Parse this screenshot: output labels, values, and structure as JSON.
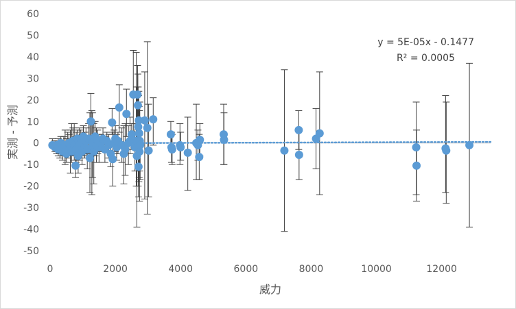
{
  "colors": {
    "marker": "#5b9bd5",
    "trendline": "#5b9bd5",
    "error_bar": "#404040",
    "axis": "#bfbfbf",
    "text": "#595959"
  },
  "chart_data": {
    "type": "scatter",
    "xlabel": "威力",
    "ylabel": "実測 - 予測",
    "xlim": [
      0,
      13500
    ],
    "ylim": [
      -50,
      60
    ],
    "xticks": [
      0,
      2000,
      4000,
      6000,
      8000,
      10000,
      12000
    ],
    "yticks": [
      -50,
      -40,
      -30,
      -20,
      -10,
      0,
      10,
      20,
      30,
      40,
      50,
      60
    ],
    "grid": false,
    "trendline": {
      "type": "linear",
      "style": "dotted",
      "slope": 5e-05,
      "intercept": -0.1477,
      "equation_text": "y = 5E-05x - 0.1477",
      "r2_text": "R² = 0.0005"
    },
    "points": [
      {
        "x": 70,
        "y": -1,
        "lo": -2,
        "hi": 2
      },
      {
        "x": 150,
        "y": -2,
        "lo": -4,
        "hi": 1
      },
      {
        "x": 200,
        "y": -1,
        "lo": -5,
        "hi": 1
      },
      {
        "x": 250,
        "y": -3,
        "lo": -6,
        "hi": 2
      },
      {
        "x": 300,
        "y": -2,
        "lo": -7,
        "hi": 1
      },
      {
        "x": 330,
        "y": 0,
        "lo": -4,
        "hi": 3
      },
      {
        "x": 380,
        "y": -4,
        "lo": -8,
        "hi": 0
      },
      {
        "x": 420,
        "y": -2,
        "lo": -6,
        "hi": 3
      },
      {
        "x": 460,
        "y": -1,
        "lo": -10,
        "hi": 6
      },
      {
        "x": 500,
        "y": -5,
        "lo": -9,
        "hi": 2
      },
      {
        "x": 540,
        "y": -3,
        "lo": -7,
        "hi": 5
      },
      {
        "x": 580,
        "y": 0,
        "lo": -5,
        "hi": 4
      },
      {
        "x": 620,
        "y": -2,
        "lo": -14,
        "hi": 6
      },
      {
        "x": 660,
        "y": -4,
        "lo": -9,
        "hi": 9
      },
      {
        "x": 700,
        "y": 1,
        "lo": -6,
        "hi": 7
      },
      {
        "x": 740,
        "y": -1,
        "lo": -8,
        "hi": 9
      },
      {
        "x": 780,
        "y": -10.5,
        "lo": -16,
        "hi": 3
      },
      {
        "x": 800,
        "y": -3,
        "lo": -9,
        "hi": 5
      },
      {
        "x": 830,
        "y": 2,
        "lo": -4,
        "hi": 6
      },
      {
        "x": 860,
        "y": -6,
        "lo": -14,
        "hi": 0
      },
      {
        "x": 900,
        "y": -1,
        "lo": -8,
        "hi": 7
      },
      {
        "x": 940,
        "y": 0,
        "lo": -5,
        "hi": 6
      },
      {
        "x": 980,
        "y": -4,
        "lo": -10,
        "hi": 4
      },
      {
        "x": 1020,
        "y": 3,
        "lo": -3,
        "hi": 8
      },
      {
        "x": 1060,
        "y": -2,
        "lo": -7,
        "hi": 5
      },
      {
        "x": 1100,
        "y": 1,
        "lo": -6,
        "hi": 7
      },
      {
        "x": 1140,
        "y": -3,
        "lo": -12,
        "hi": 3
      },
      {
        "x": 1180,
        "y": 2,
        "lo": -5,
        "hi": 9
      },
      {
        "x": 1220,
        "y": -7,
        "lo": -23,
        "hi": 14
      },
      {
        "x": 1250,
        "y": 10,
        "lo": -3,
        "hi": 23
      },
      {
        "x": 1280,
        "y": -2,
        "lo": -24,
        "hi": 15
      },
      {
        "x": 1300,
        "y": 0,
        "lo": -16,
        "hi": 14
      },
      {
        "x": 1340,
        "y": -4,
        "lo": -19,
        "hi": 9
      },
      {
        "x": 1380,
        "y": 3,
        "lo": -6,
        "hi": 10
      },
      {
        "x": 1420,
        "y": -1,
        "lo": -9,
        "hi": 7
      },
      {
        "x": 1460,
        "y": 1,
        "lo": -5,
        "hi": 6
      },
      {
        "x": 1500,
        "y": -2,
        "lo": -9,
        "hi": 4
      },
      {
        "x": 1560,
        "y": 0,
        "lo": -4,
        "hi": 4
      },
      {
        "x": 1620,
        "y": 2,
        "lo": -3,
        "hi": 7
      },
      {
        "x": 1680,
        "y": -3,
        "lo": -9,
        "hi": 3
      },
      {
        "x": 1740,
        "y": 1,
        "lo": -4,
        "hi": 5
      },
      {
        "x": 1800,
        "y": -1,
        "lo": -7,
        "hi": 4
      },
      {
        "x": 1860,
        "y": -5,
        "lo": -11,
        "hi": 1
      },
      {
        "x": 1900,
        "y": 9.5,
        "lo": 4,
        "hi": 16
      },
      {
        "x": 1920,
        "y": -7.5,
        "lo": -20,
        "hi": 5
      },
      {
        "x": 1960,
        "y": 0,
        "lo": -5,
        "hi": 6
      },
      {
        "x": 2000,
        "y": 2,
        "lo": -4,
        "hi": 8
      },
      {
        "x": 2040,
        "y": -2,
        "lo": -8,
        "hi": 4
      },
      {
        "x": 2080,
        "y": 1,
        "lo": -5,
        "hi": 5
      },
      {
        "x": 2120,
        "y": 16.5,
        "lo": 5,
        "hi": 27
      },
      {
        "x": 2200,
        "y": -1,
        "lo": -9,
        "hi": 7
      },
      {
        "x": 2260,
        "y": -5,
        "lo": -19,
        "hi": 8
      },
      {
        "x": 2300,
        "y": -3,
        "lo": -15,
        "hi": 9
      },
      {
        "x": 2340,
        "y": 13.5,
        "lo": 3,
        "hi": 25
      },
      {
        "x": 2400,
        "y": 0,
        "lo": -10,
        "hi": 8
      },
      {
        "x": 2450,
        "y": 1,
        "lo": -5,
        "hi": 12
      },
      {
        "x": 2500,
        "y": 4,
        "lo": -3,
        "hi": 9
      },
      {
        "x": 2550,
        "y": 22.5,
        "lo": 4,
        "hi": 43
      },
      {
        "x": 2600,
        "y": -2,
        "lo": -13,
        "hi": 9
      },
      {
        "x": 2640,
        "y": 1,
        "lo": -20,
        "hi": 42
      },
      {
        "x": 2660,
        "y": -6,
        "lo": -39,
        "hi": 26
      },
      {
        "x": 2680,
        "y": 22.5,
        "lo": 2,
        "hi": 36
      },
      {
        "x": 2690,
        "y": 17.5,
        "lo": 0,
        "hi": 32
      },
      {
        "x": 2700,
        "y": 7.5,
        "lo": -20,
        "hi": 26
      },
      {
        "x": 2710,
        "y": -11,
        "lo": -25,
        "hi": 22
      },
      {
        "x": 2720,
        "y": 10.5,
        "lo": -18,
        "hi": 24
      },
      {
        "x": 2730,
        "y": 4.5,
        "lo": -16,
        "hi": 17
      },
      {
        "x": 2740,
        "y": -4,
        "lo": -27,
        "hi": 15
      },
      {
        "x": 2750,
        "y": 1,
        "lo": -13,
        "hi": 19
      },
      {
        "x": 2760,
        "y": -1,
        "lo": -17,
        "hi": 11
      },
      {
        "x": 2900,
        "y": 10.5,
        "lo": -26,
        "hi": 33
      },
      {
        "x": 2980,
        "y": 7,
        "lo": -33,
        "hi": 47
      },
      {
        "x": 3020,
        "y": -3.5,
        "lo": -25,
        "hi": 18
      },
      {
        "x": 3160,
        "y": 11,
        "lo": -1,
        "hi": 21
      },
      {
        "x": 3700,
        "y": 4,
        "lo": -2,
        "hi": 10
      },
      {
        "x": 3720,
        "y": -2,
        "lo": -9,
        "hi": 5
      },
      {
        "x": 3740,
        "y": -3,
        "lo": -10,
        "hi": 4
      },
      {
        "x": 3980,
        "y": -1,
        "lo": -10,
        "hi": 9
      },
      {
        "x": 4000,
        "y": -2,
        "lo": -8,
        "hi": 5
      },
      {
        "x": 4220,
        "y": -4.5,
        "lo": -22,
        "hi": 12
      },
      {
        "x": 4480,
        "y": 0,
        "lo": -17,
        "hi": 18
      },
      {
        "x": 4530,
        "y": -1,
        "lo": -8,
        "hi": 6
      },
      {
        "x": 4570,
        "y": -6.5,
        "lo": -17,
        "hi": 4
      },
      {
        "x": 4590,
        "y": 1.5,
        "lo": -6,
        "hi": 9
      },
      {
        "x": 5320,
        "y": 4,
        "lo": -10,
        "hi": 18
      },
      {
        "x": 5330,
        "y": 1.5,
        "lo": -10,
        "hi": 14
      },
      {
        "x": 7180,
        "y": -3.5,
        "lo": -41,
        "hi": 34
      },
      {
        "x": 7620,
        "y": 6,
        "lo": -3,
        "hi": 15
      },
      {
        "x": 7630,
        "y": -5.5,
        "lo": -17,
        "hi": 6
      },
      {
        "x": 8150,
        "y": 2,
        "lo": -12,
        "hi": 16
      },
      {
        "x": 8260,
        "y": 4.5,
        "lo": -24,
        "hi": 33
      },
      {
        "x": 11220,
        "y": -2,
        "lo": -24,
        "hi": 19
      },
      {
        "x": 11230,
        "y": -10.5,
        "lo": -27,
        "hi": 6
      },
      {
        "x": 12120,
        "y": -2.5,
        "lo": -23,
        "hi": 22
      },
      {
        "x": 12140,
        "y": -3.5,
        "lo": -28,
        "hi": 19
      },
      {
        "x": 12850,
        "y": -1,
        "lo": -39,
        "hi": 37
      }
    ]
  }
}
